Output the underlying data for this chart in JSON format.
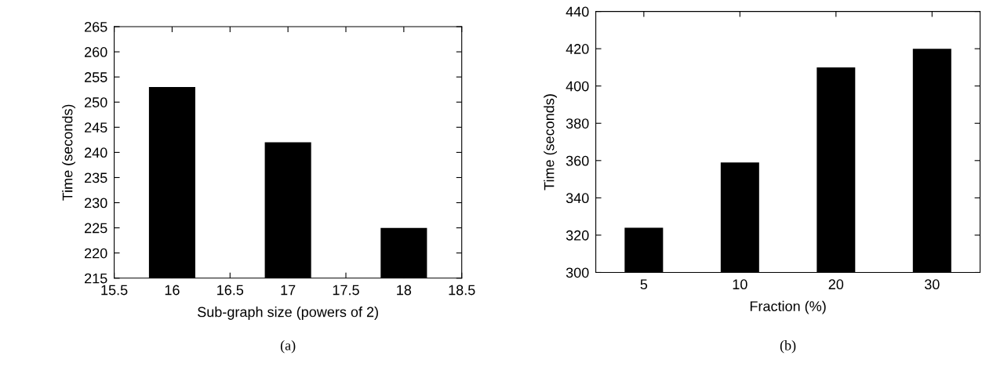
{
  "chart_data": [
    {
      "type": "bar",
      "xlabel": "Sub-graph size (powers of 2)",
      "ylabel": "Time (seconds)",
      "x": [
        16,
        17,
        18
      ],
      "values": [
        253,
        242,
        225
      ],
      "color": "#000000",
      "xlim": [
        15.5,
        18.5
      ],
      "xticks": [
        15.5,
        16,
        16.5,
        17,
        17.5,
        18,
        18.5
      ],
      "ylim": [
        215,
        265
      ],
      "yticks": [
        215,
        220,
        225,
        230,
        235,
        240,
        245,
        250,
        255,
        260,
        265
      ],
      "annotations": [
        "(a)"
      ]
    },
    {
      "type": "bar",
      "xlabel": "Fraction (%)",
      "ylabel": "Time (seconds)",
      "categories": [
        "5",
        "10",
        "20",
        "30"
      ],
      "values": [
        324,
        359,
        410,
        420
      ],
      "color": "#000000",
      "ylim": [
        300,
        440
      ],
      "yticks": [
        300,
        320,
        340,
        360,
        380,
        400,
        420,
        440
      ],
      "annotations": [
        "(b)"
      ]
    }
  ]
}
